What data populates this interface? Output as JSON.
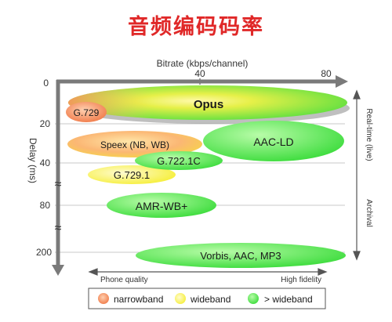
{
  "title": "音频编码码率",
  "axes": {
    "x_label": "Bitrate (kbps/channel)",
    "x_ticks": [
      "40",
      "80"
    ],
    "y_label": "Delay (ms)",
    "y_ticks": [
      "0",
      "20",
      "40",
      "80",
      "200"
    ],
    "break_symbol": "≈",
    "bottom_left": "Phone quality",
    "bottom_right": "High fidelity",
    "right_top": "Real-time (live)",
    "right_bottom": "Archival"
  },
  "codecs": {
    "opus": "Opus",
    "g729": "G.729",
    "speex": "Speex (NB, WB)",
    "aacld": "AAC-LD",
    "g7221c": "G.722.1C",
    "g7291": "G.729.1",
    "amrwb": "AMR-WB+",
    "vorbis": "Vorbis, AAC, MP3"
  },
  "legend": {
    "narrowband": "narrowband",
    "wideband": "wideband",
    "superwideband": "> wideband"
  },
  "colors": {
    "title": "#e02828",
    "narrowband": "#f08050",
    "wideband": "#f8f040",
    "superwideband": "#40e040",
    "axis": "#7a7a7a"
  }
}
